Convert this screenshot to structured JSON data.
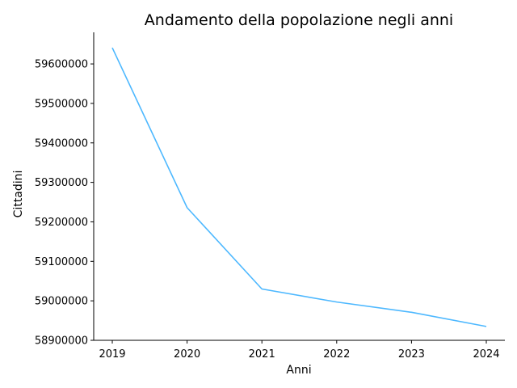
{
  "chart_data": {
    "type": "line",
    "title": "Andamento della popolazione negli anni",
    "xlabel": "Anni",
    "ylabel": "Cittadini",
    "x": [
      "2019",
      "2020",
      "2021",
      "2022",
      "2023",
      "2024"
    ],
    "series": [
      {
        "values": [
          59641000,
          59236000,
          59030000,
          58997000,
          58971000,
          58935000
        ],
        "color": "#4db8ff"
      }
    ],
    "yticks": [
      58900000,
      59000000,
      59100000,
      59200000,
      59300000,
      59400000,
      59500000,
      59600000
    ],
    "ylim": [
      58900000,
      59680000
    ],
    "grid": false,
    "legend": "none",
    "spines": [
      "left",
      "bottom"
    ]
  }
}
